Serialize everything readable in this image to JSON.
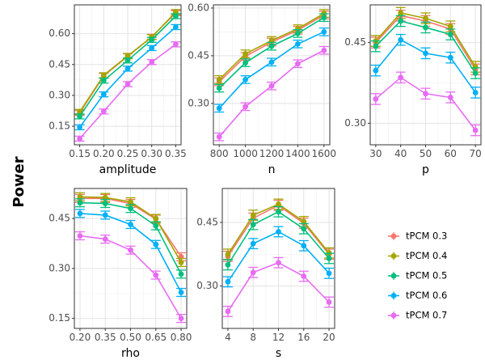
{
  "chart_data": {
    "type": "line",
    "ylabel": "Power",
    "legend": {
      "placement": "right",
      "entries": [
        "tPCM 0.3",
        "tPCM 0.4",
        "tPCM 0.5",
        "tPCM 0.6",
        "tPCM 0.7"
      ],
      "colors": [
        "#F8766D",
        "#A3A500",
        "#00BF7D",
        "#00B0F6",
        "#E76BF3"
      ]
    },
    "panels": [
      {
        "xlabel": "amplitude",
        "x_tick_labels": [
          "0.15",
          "0.20",
          "0.25",
          "0.30",
          "0.35"
        ],
        "ylim": [
          0.06,
          0.74
        ],
        "y_ticks": [
          0.15,
          0.3,
          0.45,
          0.6
        ],
        "y_tick_labels": [
          "0.15",
          "0.30",
          "0.45",
          "0.60"
        ],
        "series": [
          {
            "name": "tPCM 0.3",
            "values": [
              0.215,
              0.395,
              0.49,
              0.585,
              0.7
            ],
            "errors": [
              0.012,
              0.012,
              0.012,
              0.012,
              0.012
            ]
          },
          {
            "name": "tPCM 0.4",
            "values": [
              0.22,
              0.398,
              0.492,
              0.583,
              0.705
            ],
            "errors": [
              0.012,
              0.012,
              0.012,
              0.012,
              0.012
            ]
          },
          {
            "name": "tPCM 0.5",
            "values": [
              0.198,
              0.372,
              0.47,
              0.57,
              0.685
            ],
            "errors": [
              0.012,
              0.012,
              0.012,
              0.012,
              0.012
            ]
          },
          {
            "name": "tPCM 0.6",
            "values": [
              0.145,
              0.305,
              0.43,
              0.53,
              0.632
            ],
            "errors": [
              0.012,
              0.012,
              0.012,
              0.012,
              0.012
            ]
          },
          {
            "name": "tPCM 0.7",
            "values": [
              0.09,
              0.222,
              0.355,
              0.462,
              0.548
            ],
            "errors": [
              0.012,
              0.012,
              0.012,
              0.012,
              0.012
            ]
          }
        ]
      },
      {
        "xlabel": "n",
        "x_tick_labels": [
          "800",
          "1000",
          "1200",
          "1400",
          "1600"
        ],
        "ylim": [
          0.17,
          0.61
        ],
        "y_ticks": [
          0.3,
          0.45,
          0.6
        ],
        "y_tick_labels": [
          "0.30",
          "0.45",
          "0.60"
        ],
        "series": [
          {
            "name": "tPCM 0.3",
            "values": [
              0.368,
              0.448,
              0.493,
              0.53,
              0.578
            ],
            "errors": [
              0.012,
              0.012,
              0.012,
              0.012,
              0.012
            ]
          },
          {
            "name": "tPCM 0.4",
            "values": [
              0.375,
              0.456,
              0.498,
              0.535,
              0.583
            ],
            "errors": [
              0.012,
              0.012,
              0.012,
              0.012,
              0.012
            ]
          },
          {
            "name": "tPCM 0.5",
            "values": [
              0.348,
              0.428,
              0.48,
              0.52,
              0.57
            ],
            "errors": [
              0.012,
              0.012,
              0.012,
              0.012,
              0.012
            ]
          },
          {
            "name": "tPCM 0.6",
            "values": [
              0.285,
              0.375,
              0.43,
              0.487,
              0.525
            ],
            "errors": [
              0.012,
              0.012,
              0.012,
              0.012,
              0.012
            ]
          },
          {
            "name": "tPCM 0.7",
            "values": [
              0.195,
              0.29,
              0.355,
              0.425,
              0.467
            ],
            "errors": [
              0.012,
              0.012,
              0.012,
              0.012,
              0.012
            ]
          }
        ]
      },
      {
        "xlabel": "p",
        "x_tick_labels": [
          "30",
          "40",
          "50",
          "60",
          "70"
        ],
        "ylim": [
          0.26,
          0.52
        ],
        "y_ticks": [
          0.3,
          0.45
        ],
        "y_tick_labels": [
          "0.30",
          "0.45"
        ],
        "series": [
          {
            "name": "tPCM 0.3",
            "values": [
              0.45,
              0.5,
              0.49,
              0.475,
              0.4
            ],
            "errors": [
              0.01,
              0.01,
              0.01,
              0.01,
              0.01
            ]
          },
          {
            "name": "tPCM 0.4",
            "values": [
              0.453,
              0.505,
              0.495,
              0.48,
              0.405
            ],
            "errors": [
              0.01,
              0.01,
              0.01,
              0.01,
              0.01
            ]
          },
          {
            "name": "tPCM 0.5",
            "values": [
              0.443,
              0.49,
              0.478,
              0.465,
              0.393
            ],
            "errors": [
              0.01,
              0.01,
              0.01,
              0.01,
              0.01
            ]
          },
          {
            "name": "tPCM 0.6",
            "values": [
              0.398,
              0.455,
              0.43,
              0.422,
              0.357
            ],
            "errors": [
              0.01,
              0.01,
              0.01,
              0.01,
              0.01
            ]
          },
          {
            "name": "tPCM 0.7",
            "values": [
              0.345,
              0.385,
              0.355,
              0.348,
              0.287
            ],
            "errors": [
              0.01,
              0.01,
              0.01,
              0.01,
              0.01
            ]
          }
        ]
      },
      {
        "xlabel": "rho",
        "x_tick_labels": [
          "0.20",
          "0.35",
          "0.50",
          "0.65",
          "0.80"
        ],
        "ylim": [
          0.12,
          0.54
        ],
        "y_ticks": [
          0.15,
          0.3,
          0.45
        ],
        "y_tick_labels": [
          "0.15",
          "0.30",
          "0.45"
        ],
        "series": [
          {
            "name": "tPCM 0.3",
            "values": [
              0.51,
              0.51,
              0.495,
              0.448,
              0.335
            ],
            "errors": [
              0.012,
              0.012,
              0.012,
              0.012,
              0.012
            ]
          },
          {
            "name": "tPCM 0.4",
            "values": [
              0.515,
              0.513,
              0.5,
              0.45,
              0.318
            ],
            "errors": [
              0.012,
              0.012,
              0.012,
              0.012,
              0.012
            ]
          },
          {
            "name": "tPCM 0.5",
            "values": [
              0.497,
              0.495,
              0.48,
              0.428,
              0.283
            ],
            "errors": [
              0.012,
              0.012,
              0.012,
              0.012,
              0.012
            ]
          },
          {
            "name": "tPCM 0.6",
            "values": [
              0.465,
              0.46,
              0.432,
              0.372,
              0.228
            ],
            "errors": [
              0.012,
              0.012,
              0.012,
              0.012,
              0.012
            ]
          },
          {
            "name": "tPCM 0.7",
            "values": [
              0.398,
              0.388,
              0.355,
              0.28,
              0.15
            ],
            "errors": [
              0.012,
              0.012,
              0.012,
              0.012,
              0.012
            ]
          }
        ]
      },
      {
        "xlabel": "s",
        "x_tick_labels": [
          "4",
          "8",
          "12",
          "16",
          "20"
        ],
        "ylim": [
          0.2,
          0.53
        ],
        "y_ticks": [
          0.3,
          0.45
        ],
        "y_tick_labels": [
          "0.30",
          "0.45"
        ],
        "series": [
          {
            "name": "tPCM 0.3",
            "values": [
              0.37,
              0.46,
              0.49,
              0.448,
              0.375
            ],
            "errors": [
              0.012,
              0.012,
              0.012,
              0.012,
              0.012
            ]
          },
          {
            "name": "tPCM 0.4",
            "values": [
              0.375,
              0.467,
              0.493,
              0.452,
              0.378
            ],
            "errors": [
              0.012,
              0.012,
              0.012,
              0.012,
              0.012
            ]
          },
          {
            "name": "tPCM 0.5",
            "values": [
              0.35,
              0.445,
              0.475,
              0.435,
              0.365
            ],
            "errors": [
              0.012,
              0.012,
              0.012,
              0.012,
              0.012
            ]
          },
          {
            "name": "tPCM 0.6",
            "values": [
              0.31,
              0.4,
              0.428,
              0.395,
              0.33
            ],
            "errors": [
              0.012,
              0.012,
              0.012,
              0.012,
              0.012
            ]
          },
          {
            "name": "tPCM 0.7",
            "values": [
              0.24,
              0.332,
              0.355,
              0.323,
              0.262
            ],
            "errors": [
              0.012,
              0.012,
              0.012,
              0.012,
              0.012
            ]
          }
        ]
      }
    ]
  }
}
